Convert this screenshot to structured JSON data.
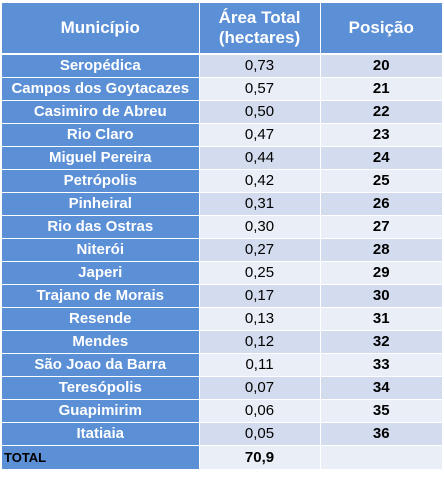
{
  "table": {
    "headers": {
      "municipio": "Município",
      "area_line1": "Área Total",
      "area_line2": "(hectares)",
      "posicao": "Posição"
    },
    "rows": [
      {
        "municipio": "Seropédica",
        "area": "0,73",
        "posicao": "20"
      },
      {
        "municipio": "Campos dos Goytacazes",
        "area": "0,57",
        "posicao": "21"
      },
      {
        "municipio": "Casimiro de Abreu",
        "area": "0,50",
        "posicao": "22"
      },
      {
        "municipio": "Rio Claro",
        "area": "0,47",
        "posicao": "23"
      },
      {
        "municipio": "Miguel Pereira",
        "area": "0,44",
        "posicao": "24"
      },
      {
        "municipio": "Petrópolis",
        "area": "0,42",
        "posicao": "25"
      },
      {
        "municipio": "Pinheiral",
        "area": "0,31",
        "posicao": "26"
      },
      {
        "municipio": "Rio das Ostras",
        "area": "0,30",
        "posicao": "27"
      },
      {
        "municipio": "Niterói",
        "area": "0,27",
        "posicao": "28"
      },
      {
        "municipio": "Japeri",
        "area": "0,25",
        "posicao": "29"
      },
      {
        "municipio": "Trajano de Morais",
        "area": "0,17",
        "posicao": "30"
      },
      {
        "municipio": "Resende",
        "area": "0,13",
        "posicao": "31"
      },
      {
        "municipio": "Mendes",
        "area": "0,12",
        "posicao": "32"
      },
      {
        "municipio": "São Joao da Barra",
        "area": "0,11",
        "posicao": "33"
      },
      {
        "municipio": "Teresópolis",
        "area": "0,07",
        "posicao": "34"
      },
      {
        "municipio": "Guapimirim",
        "area": "0,06",
        "posicao": "35"
      },
      {
        "municipio": "Itatiaia",
        "area": "0,05",
        "posicao": "36"
      }
    ],
    "total": {
      "label": "TOTAL",
      "area": "70,9",
      "posicao": ""
    }
  },
  "colors": {
    "header_blue": "#5b8fd6",
    "row_light": "#d3dcee",
    "row_lighter": "#eaeff7"
  }
}
